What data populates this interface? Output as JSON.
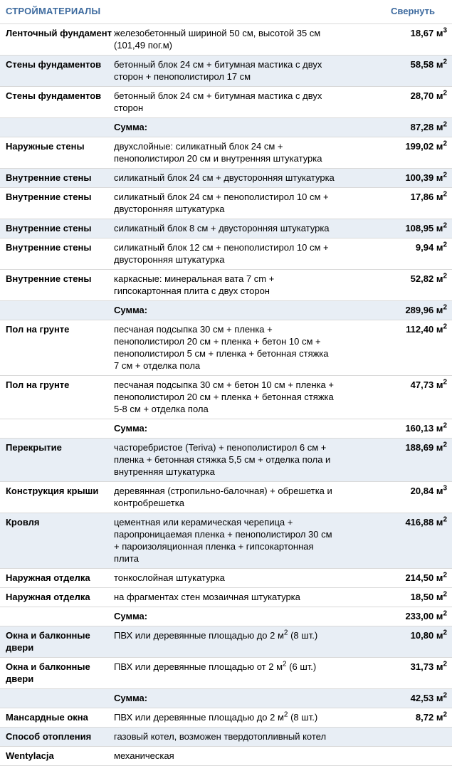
{
  "header": {
    "title": "СТРОЙМАТЕРИАЛЫ",
    "collapse_link": "Свернуть"
  },
  "colors": {
    "accent_blue": "#3e6b9f",
    "shaded_row_bg": "#e8eef5",
    "row_border": "#d9d9d9"
  },
  "table": {
    "rows": [
      {
        "category": "Ленточный фундамент",
        "description": "железобетонный шириной 50 см, высотой 35 см (101,49 пог.м)",
        "value": "18,67",
        "unit": "м",
        "unit_sup": "3",
        "shaded": false,
        "is_sum": false
      },
      {
        "category": "Стены фундаментов",
        "description": "бетонный блок 24 см + битумная мастика с двух сторон + пенополистирол 17 см",
        "value": "58,58",
        "unit": "м",
        "unit_sup": "2",
        "shaded": true,
        "is_sum": false
      },
      {
        "category": "Стены фундаментов",
        "description": "бетонный блок 24 см + битумная мастика с двух сторон",
        "value": "28,70",
        "unit": "м",
        "unit_sup": "2",
        "shaded": false,
        "is_sum": false
      },
      {
        "category": "",
        "description": "Сумма:",
        "value": "87,28",
        "unit": "м",
        "unit_sup": "2",
        "shaded": true,
        "is_sum": true
      },
      {
        "category": "Наружные стены",
        "description": "двухслойные: силикатный блок 24 см + пенополистирол 20 см и внутренняя штукатурка",
        "value": "199,02",
        "unit": "м",
        "unit_sup": "2",
        "shaded": false,
        "is_sum": false
      },
      {
        "category": "Внутренние стены",
        "description": "силикатный блок 24 см + двусторонняя штукатурка",
        "value": "100,39",
        "unit": "м",
        "unit_sup": "2",
        "shaded": true,
        "is_sum": false
      },
      {
        "category": "Внутренние стены",
        "description": "силикатный блок 24 см + пенополистирол 10 см + двусторонняя штукатурка",
        "value": "17,86",
        "unit": "м",
        "unit_sup": "2",
        "shaded": false,
        "is_sum": false
      },
      {
        "category": "Внутренние стены",
        "description": "силикатный блок 8 см + двусторонняя штукатурка",
        "value": "108,95",
        "unit": "м",
        "unit_sup": "2",
        "shaded": true,
        "is_sum": false
      },
      {
        "category": "Внутренние стены",
        "description": "силикатный блок 12 см + пенополистирол 10 см + двусторонняя штукатурка",
        "value": "9,94",
        "unit": "м",
        "unit_sup": "2",
        "shaded": false,
        "is_sum": false
      },
      {
        "category": "Внутренние стены",
        "description": "каркасные: минеральная вата 7 cm + гипсокартонная плита с двух сторон",
        "value": "52,82",
        "unit": "м",
        "unit_sup": "2",
        "shaded": false,
        "is_sum": false
      },
      {
        "category": "",
        "description": "Сумма:",
        "value": "289,96",
        "unit": "м",
        "unit_sup": "2",
        "shaded": true,
        "is_sum": true
      },
      {
        "category": "Пол на грунте",
        "description": "песчаная подсыпка 30 см + пленка + пенополистирол 20 см + пленка + бетон 10 см + пенополистирол 5 см + пленка + бетонная стяжка 7 см + отделка пола",
        "value": "112,40",
        "unit": "м",
        "unit_sup": "2",
        "shaded": false,
        "is_sum": false
      },
      {
        "category": "Пол на грунте",
        "description": "песчаная подсыпка 30 см + бетон 10 см + пленка + пенополистирол 20 см + пленка + бетонная стяжка 5-8 см + отделка пола",
        "value": "47,73",
        "unit": "м",
        "unit_sup": "2",
        "shaded": false,
        "is_sum": false
      },
      {
        "category": "",
        "description": "Сумма:",
        "value": "160,13",
        "unit": "м",
        "unit_sup": "2",
        "shaded": false,
        "is_sum": true
      },
      {
        "category": "Перекрытие",
        "description": "часторебристое (Teriva) + пенополистирол 6 см + пленка + бетонная стяжка 5,5 см + отделка пола и внутренняя штукатурка",
        "value": "188,69",
        "unit": "м",
        "unit_sup": "2",
        "shaded": true,
        "is_sum": false
      },
      {
        "category": "Конструкция крыши",
        "description": "деревянная (стропильно-балочная) + обрешетка и контробрешетка",
        "value": "20,84",
        "unit": "м",
        "unit_sup": "3",
        "shaded": false,
        "is_sum": false
      },
      {
        "category": "Кровля",
        "description": "цементная или керамическая черепица + паропроницаемая пленка + пенополистирол 30 см + пароизоляционная пленка + гипсокартонная плита",
        "value": "416,88",
        "unit": "м",
        "unit_sup": "2",
        "shaded": true,
        "is_sum": false
      },
      {
        "category": "Наружная отделка",
        "description": "тонкослойная штукатурка",
        "value": "214,50",
        "unit": "м",
        "unit_sup": "2",
        "shaded": false,
        "is_sum": false
      },
      {
        "category": "Наружная отделка",
        "description": "на фрагментах стен мозаичная штукатурка",
        "value": "18,50",
        "unit": "м",
        "unit_sup": "2",
        "shaded": false,
        "is_sum": false
      },
      {
        "category": "",
        "description": "Сумма:",
        "value": "233,00",
        "unit": "м",
        "unit_sup": "2",
        "shaded": false,
        "is_sum": true
      },
      {
        "category": "Окна и балконные двери",
        "description": "ПВХ или деревянные площадью до 2 м² (8 шт.)",
        "value": "10,80",
        "unit": "м",
        "unit_sup": "2",
        "shaded": true,
        "is_sum": false
      },
      {
        "category": "Окна и балконные двери",
        "description": "ПВХ или деревянные площадью от 2 м² (6 шт.)",
        "value": "31,73",
        "unit": "м",
        "unit_sup": "2",
        "shaded": false,
        "is_sum": false
      },
      {
        "category": "",
        "description": "Сумма:",
        "value": "42,53",
        "unit": "м",
        "unit_sup": "2",
        "shaded": true,
        "is_sum": true
      },
      {
        "category": "Мансардные окна",
        "description": "ПВХ или деревянные площадью до 2 м² (8 шт.)",
        "value": "8,72",
        "unit": "м",
        "unit_sup": "2",
        "shaded": false,
        "is_sum": false
      },
      {
        "category": "Способ отопления",
        "description": "газовый котел, возможен твердотопливный котел",
        "value": null,
        "unit": null,
        "unit_sup": null,
        "shaded": true,
        "is_sum": false
      },
      {
        "category": "Wentylacja",
        "description": "механическая",
        "value": null,
        "unit": null,
        "unit_sup": null,
        "shaded": false,
        "is_sum": false
      }
    ]
  }
}
